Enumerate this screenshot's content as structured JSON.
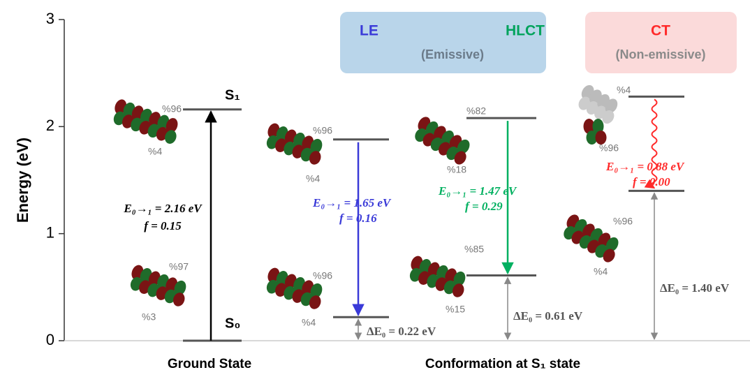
{
  "chart_data": {
    "type": "level",
    "ylabel": "Energy (eV)",
    "ylim": [
      0,
      3
    ],
    "yticks": [
      0,
      1,
      2,
      3
    ],
    "groups": [
      "Ground State",
      "Conformation at S₁ state"
    ],
    "boxes": [
      {
        "color": "#b9d5ea",
        "items": [
          {
            "text": "LE",
            "color": "#3a3ad8"
          },
          {
            "text": "HLCT",
            "color": "#00a35c"
          },
          {
            "text": "(Emissive)",
            "color": "#6b7b8a"
          }
        ]
      },
      {
        "color": "#fbdada",
        "items": [
          {
            "text": "CT",
            "color": "#ff2a2a"
          },
          {
            "text": "(Non-emissive)",
            "color": "#8a8a8a"
          }
        ]
      }
    ],
    "columns": [
      {
        "upper": 2.16,
        "lower": 0,
        "upper_label": "S₁",
        "lower_label": "S₀",
        "color": "#000000",
        "energy": "E₀→₁ = 2.16 eV",
        "f": "f = 0.15",
        "upper_orbital": [
          "%96",
          "%4"
        ],
        "lower_orbital": [
          "%97",
          "%3"
        ]
      },
      {
        "upper": 1.88,
        "lower": 0.22,
        "color": "#3a3ad8",
        "energy": "E₀→₁ = 1.65 eV",
        "f": "f = 0.16",
        "gap": "ΔE₀ = 0.22 eV",
        "upper_orbital": [
          "%96",
          "%4"
        ],
        "lower_orbital": [
          "%96",
          "%4"
        ]
      },
      {
        "upper": 2.08,
        "lower": 0.61,
        "color": "#00b060",
        "energy": "E₀→₁ = 1.47 eV",
        "f": "f = 0.29",
        "gap": "ΔE₀ = 0.61 eV",
        "upper_orbital": [
          "%82",
          "%18"
        ],
        "lower_orbital": [
          "%85",
          "%15"
        ]
      },
      {
        "upper": 2.28,
        "lower": 1.4,
        "color": "#ff2a2a",
        "wavy": true,
        "energy": "E₀→₁ = 0.88 eV",
        "f": "f = 0.00",
        "gap": "ΔE₀ = 1.40 eV",
        "upper_orbital": [
          "%4",
          "%96"
        ],
        "lower_orbital": [
          "%96",
          "%4"
        ]
      }
    ]
  }
}
